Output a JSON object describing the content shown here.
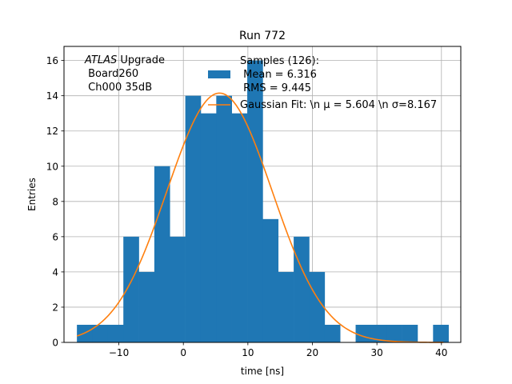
{
  "chart_data": {
    "type": "histogram",
    "title": "Run 772",
    "xlabel": "time [ns]",
    "ylabel": "Entries",
    "xlim": [
      -18.5,
      43
    ],
    "ylim": [
      0,
      16.8
    ],
    "xticks": [
      -10,
      0,
      10,
      20,
      30,
      40
    ],
    "yticks": [
      0,
      2,
      4,
      6,
      8,
      10,
      12,
      14,
      16
    ],
    "grid": true,
    "bins": {
      "edges": [
        -16.5,
        -14.1,
        -11.7,
        -9.3,
        -6.9,
        -4.5,
        -2.1,
        0.3,
        2.7,
        5.1,
        7.5,
        9.9,
        12.3,
        14.7,
        17.1,
        19.5,
        21.9,
        24.3,
        26.7,
        29.1,
        31.5,
        33.9,
        36.3,
        38.7,
        41.1
      ],
      "counts": [
        1,
        1,
        1,
        6,
        4,
        10,
        6,
        14,
        13,
        14,
        13,
        16,
        7,
        4,
        6,
        4,
        1,
        0,
        1,
        1,
        1,
        1,
        0,
        1
      ]
    },
    "fit": {
      "mu": 5.604,
      "sigma": 8.167,
      "amplitude": 14.15,
      "x_range": [
        -16.5,
        40.3
      ]
    },
    "colors": {
      "bars": "#1f77b4",
      "fit": "#ff7f0e",
      "grid": "#b0b0b0"
    },
    "annotation": {
      "italic": "ATLAS",
      "rest": " Upgrade",
      "line2": " Board260",
      "line3": " Ch000 35dB"
    },
    "legend": {
      "hist_label_line1": "Samples (126):",
      "hist_label_line2": " Mean = 6.316",
      "hist_label_line3": " RMS = 9.445",
      "fit_label": "Gaussian Fit: \\n μ = 5.604 \\n σ=8.167"
    }
  }
}
